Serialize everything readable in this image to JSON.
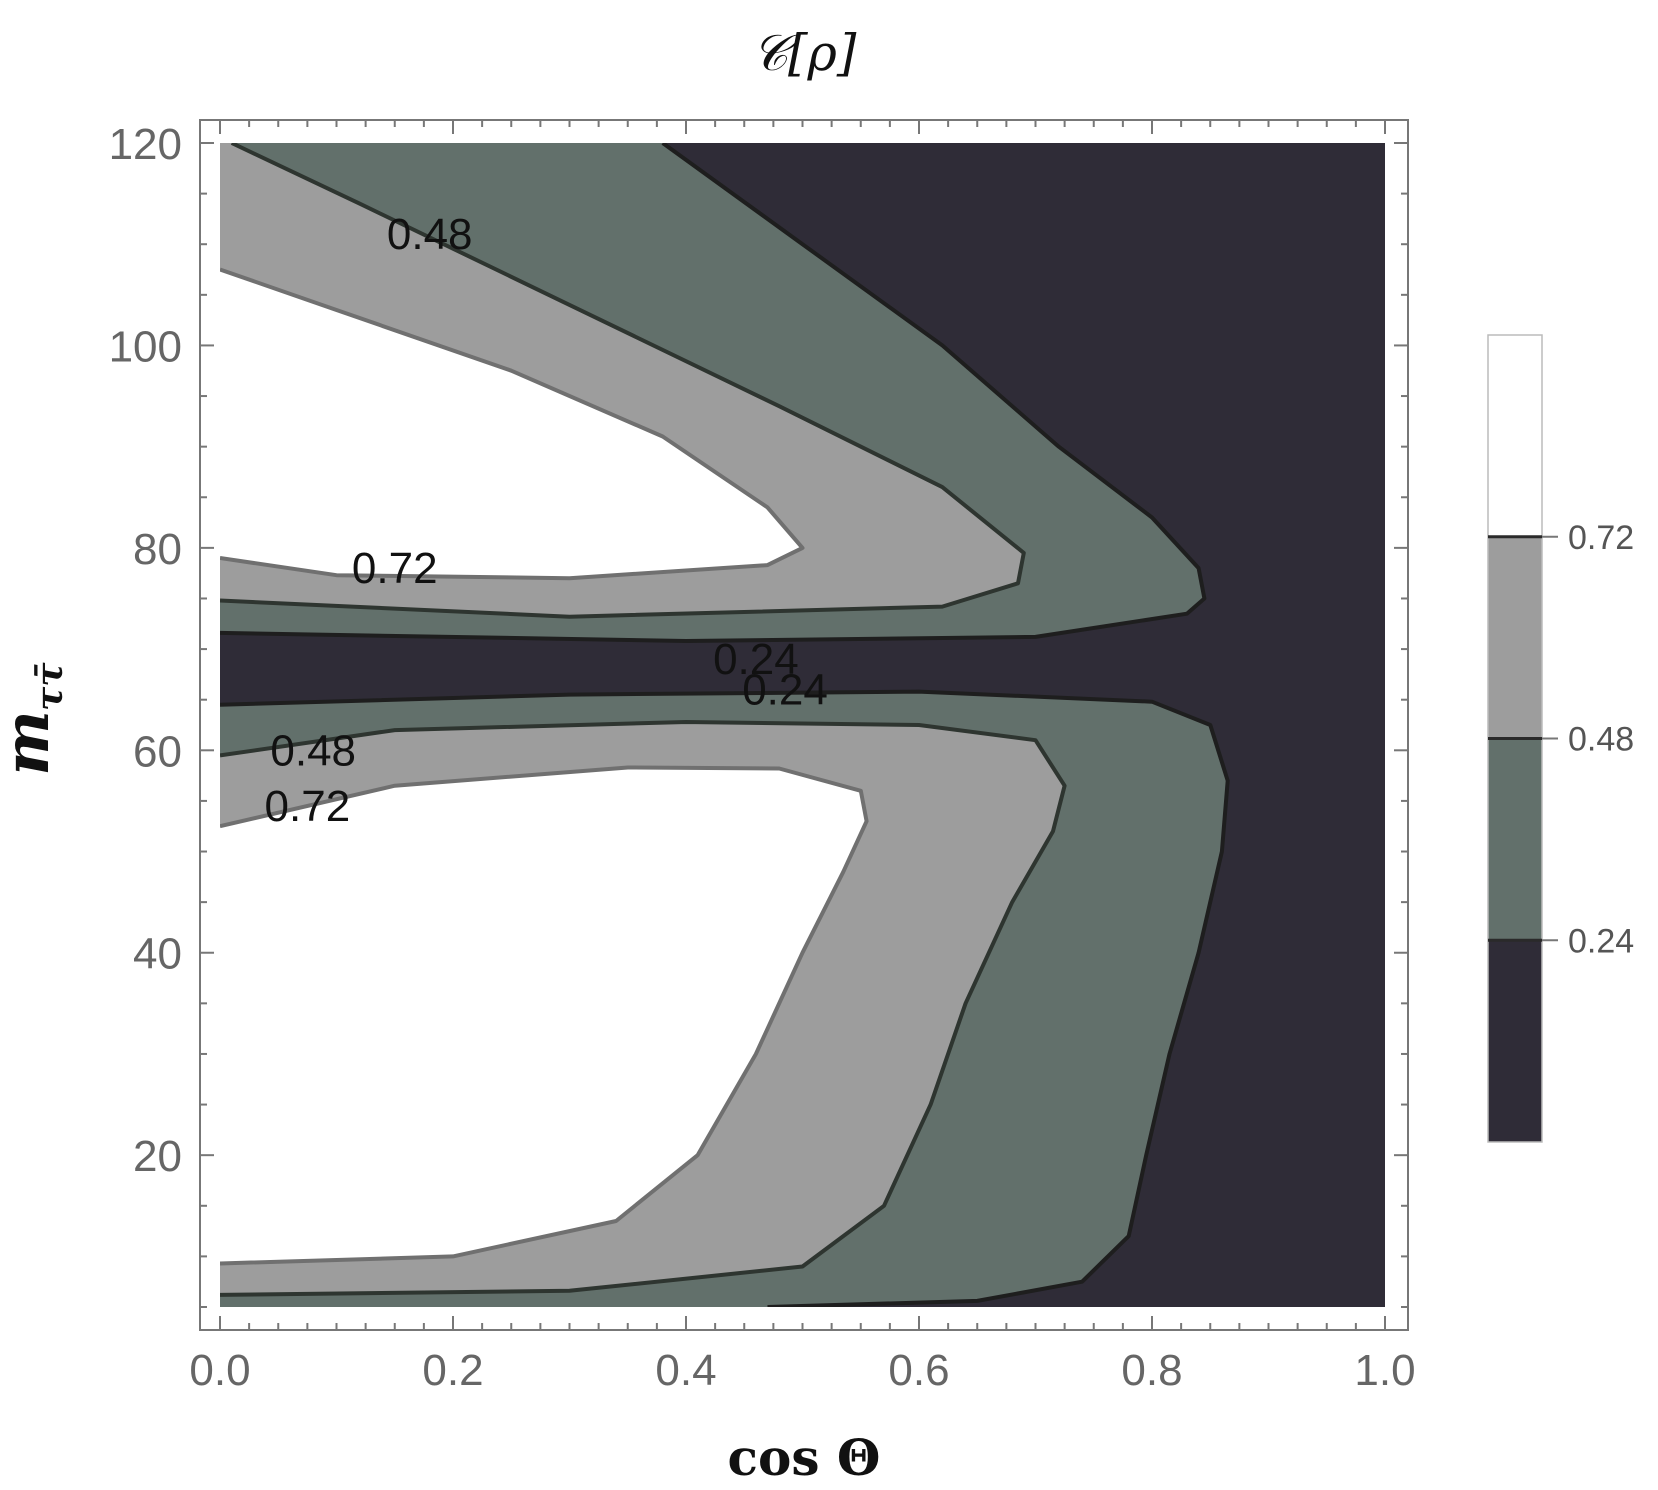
{
  "chart_data": {
    "type": "contour",
    "title": "𝒞[ρ]",
    "xlabel": "cos Θ",
    "ylabel": "m_{ττ̄}",
    "ylabel_main": "m",
    "ylabel_sub": "ττ̄",
    "xlim": [
      0.0,
      1.0
    ],
    "ylim": [
      5,
      120
    ],
    "x_ticks": [
      "0.0",
      "0.2",
      "0.4",
      "0.6",
      "0.8",
      "1.0"
    ],
    "y_ticks": [
      "20",
      "40",
      "60",
      "80",
      "100",
      "120"
    ],
    "levels": [
      0.24,
      0.48,
      0.72
    ],
    "colorbar_ticks": [
      "0.24",
      "0.48",
      "0.72"
    ],
    "colorbar_range": [
      0,
      0.96
    ],
    "colors": {
      "below_0.24": "#2f2c37",
      "0.24_to_0.48": "#62706b",
      "0.48_to_0.72": "#9d9d9d",
      "above_0.72": "#ffffff",
      "line_0.24": "#1e1e1e",
      "line_0.48": "#2e3530",
      "line_0.72": "#707070"
    },
    "contours": {
      "0.24": [
        [
          [
            0.38,
            120
          ],
          [
            0.5,
            110
          ],
          [
            0.62,
            100
          ],
          [
            0.72,
            90
          ],
          [
            0.8,
            83
          ],
          [
            0.84,
            78
          ],
          [
            0.845,
            75
          ],
          [
            0.83,
            73.5
          ],
          [
            0.7,
            71.2
          ],
          [
            0.4,
            70.8
          ],
          [
            0.0,
            71.6
          ]
        ],
        [
          [
            0.0,
            64.5
          ],
          [
            0.3,
            65.5
          ],
          [
            0.6,
            65.8
          ],
          [
            0.8,
            64.8
          ],
          [
            0.85,
            62.5
          ],
          [
            0.865,
            57
          ],
          [
            0.86,
            50
          ],
          [
            0.84,
            40
          ],
          [
            0.815,
            30
          ],
          [
            0.795,
            20
          ],
          [
            0.78,
            12
          ],
          [
            0.74,
            7.5
          ],
          [
            0.65,
            5.6
          ],
          [
            0.47,
            5
          ]
        ]
      ],
      "0.48": [
        [
          [
            0.01,
            120
          ],
          [
            0.12,
            114
          ],
          [
            0.3,
            104
          ],
          [
            0.48,
            94
          ],
          [
            0.62,
            86
          ],
          [
            0.69,
            79.5
          ],
          [
            0.685,
            76.5
          ],
          [
            0.62,
            74.2
          ],
          [
            0.3,
            73.2
          ],
          [
            0.0,
            74.8
          ]
        ],
        [
          [
            0.0,
            59.5
          ],
          [
            0.15,
            62
          ],
          [
            0.4,
            62.8
          ],
          [
            0.6,
            62.5
          ],
          [
            0.7,
            61
          ],
          [
            0.725,
            56.5
          ],
          [
            0.715,
            52
          ],
          [
            0.68,
            45
          ],
          [
            0.64,
            35
          ],
          [
            0.61,
            25
          ],
          [
            0.57,
            15
          ],
          [
            0.5,
            9
          ],
          [
            0.3,
            6.6
          ],
          [
            0.0,
            6.2
          ]
        ]
      ],
      "0.72": [
        [
          [
            0.0,
            107.5
          ],
          [
            0.1,
            103.5
          ],
          [
            0.25,
            97.5
          ],
          [
            0.38,
            91
          ],
          [
            0.47,
            84
          ],
          [
            0.5,
            80
          ],
          [
            0.47,
            78.3
          ],
          [
            0.3,
            77
          ],
          [
            0.1,
            77.3
          ],
          [
            0.0,
            79
          ]
        ],
        [
          [
            0.0,
            52.5
          ],
          [
            0.15,
            56.5
          ],
          [
            0.35,
            58.3
          ],
          [
            0.48,
            58.2
          ],
          [
            0.55,
            56
          ],
          [
            0.555,
            53
          ],
          [
            0.535,
            48
          ],
          [
            0.5,
            40
          ],
          [
            0.46,
            30
          ],
          [
            0.41,
            20
          ],
          [
            0.34,
            13.5
          ],
          [
            0.2,
            10
          ],
          [
            0.0,
            9.3
          ]
        ]
      ]
    },
    "contour_labels": [
      {
        "text": "0.48",
        "x": 0.18,
        "y": 111
      },
      {
        "text": "0.72",
        "x": 0.15,
        "y": 78
      },
      {
        "text": "0.24",
        "x": 0.46,
        "y": 69
      },
      {
        "text": "0.24",
        "x": 0.485,
        "y": 66
      },
      {
        "text": "0.48",
        "x": 0.08,
        "y": 60
      },
      {
        "text": "0.72",
        "x": 0.075,
        "y": 54.5
      }
    ]
  }
}
